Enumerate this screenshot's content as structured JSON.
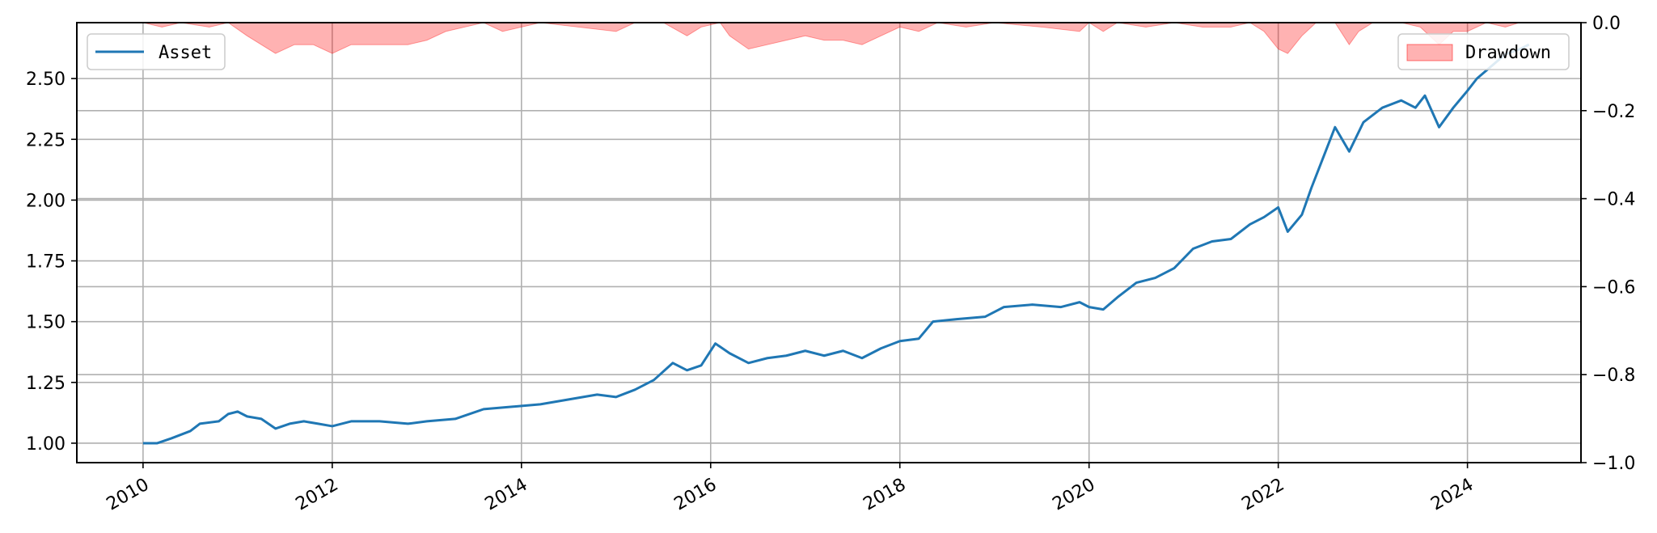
{
  "chart_data": {
    "type": "line",
    "title": "",
    "xlabel": "",
    "ylabel_left": "",
    "ylabel_right": "",
    "xlim": [
      2009.3,
      2025.2
    ],
    "ylim_left": [
      0.92,
      2.73
    ],
    "ylim_right": [
      -1.0,
      0.0
    ],
    "x_ticks": [
      2010,
      2012,
      2014,
      2016,
      2018,
      2020,
      2022,
      2024
    ],
    "x_tick_labels": [
      "2010",
      "2012",
      "2014",
      "2016",
      "2018",
      "2020",
      "2022",
      "2024"
    ],
    "y_left_ticks": [
      1.0,
      1.25,
      1.5,
      1.75,
      2.0,
      2.25,
      2.5
    ],
    "y_left_tick_labels": [
      "1.00",
      "1.25",
      "1.50",
      "1.75",
      "2.00",
      "2.25",
      "2.50"
    ],
    "y_right_ticks": [
      0.0,
      -0.2,
      -0.4,
      -0.6,
      -0.8,
      -1.0
    ],
    "y_right_tick_labels": [
      "0.0",
      "−0.2",
      "−0.4",
      "−0.6",
      "−0.8",
      "−1.0"
    ],
    "grid": true,
    "legend_left": "top-left",
    "legend_right": "top-right",
    "series": [
      {
        "name": "Asset",
        "axis": "left",
        "kind": "line",
        "color": "#1f77b4",
        "points": [
          [
            2010.0,
            1.0
          ],
          [
            2010.15,
            1.0
          ],
          [
            2010.3,
            1.02
          ],
          [
            2010.5,
            1.05
          ],
          [
            2010.6,
            1.08
          ],
          [
            2010.8,
            1.09
          ],
          [
            2010.9,
            1.12
          ],
          [
            2011.0,
            1.13
          ],
          [
            2011.1,
            1.11
          ],
          [
            2011.25,
            1.1
          ],
          [
            2011.4,
            1.06
          ],
          [
            2011.55,
            1.08
          ],
          [
            2011.7,
            1.09
          ],
          [
            2011.85,
            1.08
          ],
          [
            2012.0,
            1.07
          ],
          [
            2012.2,
            1.09
          ],
          [
            2012.5,
            1.09
          ],
          [
            2012.8,
            1.08
          ],
          [
            2013.0,
            1.09
          ],
          [
            2013.3,
            1.1
          ],
          [
            2013.6,
            1.14
          ],
          [
            2013.9,
            1.15
          ],
          [
            2014.2,
            1.16
          ],
          [
            2014.5,
            1.18
          ],
          [
            2014.8,
            1.2
          ],
          [
            2015.0,
            1.19
          ],
          [
            2015.2,
            1.22
          ],
          [
            2015.4,
            1.26
          ],
          [
            2015.6,
            1.33
          ],
          [
            2015.75,
            1.3
          ],
          [
            2015.9,
            1.32
          ],
          [
            2016.05,
            1.41
          ],
          [
            2016.2,
            1.37
          ],
          [
            2016.4,
            1.33
          ],
          [
            2016.6,
            1.35
          ],
          [
            2016.8,
            1.36
          ],
          [
            2017.0,
            1.38
          ],
          [
            2017.2,
            1.36
          ],
          [
            2017.4,
            1.38
          ],
          [
            2017.6,
            1.35
          ],
          [
            2017.8,
            1.39
          ],
          [
            2018.0,
            1.42
          ],
          [
            2018.2,
            1.43
          ],
          [
            2018.35,
            1.5
          ],
          [
            2018.6,
            1.51
          ],
          [
            2018.9,
            1.52
          ],
          [
            2019.1,
            1.56
          ],
          [
            2019.4,
            1.57
          ],
          [
            2019.7,
            1.56
          ],
          [
            2019.9,
            1.58
          ],
          [
            2020.0,
            1.56
          ],
          [
            2020.15,
            1.55
          ],
          [
            2020.3,
            1.6
          ],
          [
            2020.5,
            1.66
          ],
          [
            2020.7,
            1.68
          ],
          [
            2020.9,
            1.72
          ],
          [
            2021.1,
            1.8
          ],
          [
            2021.3,
            1.83
          ],
          [
            2021.5,
            1.84
          ],
          [
            2021.7,
            1.9
          ],
          [
            2021.85,
            1.93
          ],
          [
            2022.0,
            1.97
          ],
          [
            2022.1,
            1.87
          ],
          [
            2022.25,
            1.94
          ],
          [
            2022.35,
            2.05
          ],
          [
            2022.5,
            2.2
          ],
          [
            2022.6,
            2.3
          ],
          [
            2022.75,
            2.2
          ],
          [
            2022.9,
            2.32
          ],
          [
            2023.1,
            2.38
          ],
          [
            2023.3,
            2.41
          ],
          [
            2023.45,
            2.38
          ],
          [
            2023.55,
            2.43
          ],
          [
            2023.7,
            2.3
          ],
          [
            2023.85,
            2.38
          ],
          [
            2024.0,
            2.45
          ],
          [
            2024.1,
            2.5
          ],
          [
            2024.25,
            2.55
          ],
          [
            2024.4,
            2.6
          ],
          [
            2024.55,
            2.62
          ],
          [
            2024.65,
            2.64
          ]
        ]
      },
      {
        "name": "Drawdown",
        "axis": "right",
        "kind": "area",
        "color": "#ff0000",
        "points": [
          [
            2010.0,
            0.0
          ],
          [
            2010.2,
            -0.01
          ],
          [
            2010.4,
            0.0
          ],
          [
            2010.7,
            -0.01
          ],
          [
            2010.9,
            0.0
          ],
          [
            2011.1,
            -0.03
          ],
          [
            2011.25,
            -0.05
          ],
          [
            2011.4,
            -0.07
          ],
          [
            2011.6,
            -0.05
          ],
          [
            2011.8,
            -0.05
          ],
          [
            2012.0,
            -0.07
          ],
          [
            2012.2,
            -0.05
          ],
          [
            2012.5,
            -0.05
          ],
          [
            2012.8,
            -0.05
          ],
          [
            2013.0,
            -0.04
          ],
          [
            2013.2,
            -0.02
          ],
          [
            2013.4,
            -0.01
          ],
          [
            2013.6,
            0.0
          ],
          [
            2013.8,
            -0.02
          ],
          [
            2014.0,
            -0.01
          ],
          [
            2014.2,
            0.0
          ],
          [
            2014.6,
            -0.01
          ],
          [
            2015.0,
            -0.02
          ],
          [
            2015.2,
            0.0
          ],
          [
            2015.5,
            0.0
          ],
          [
            2015.75,
            -0.03
          ],
          [
            2015.9,
            -0.01
          ],
          [
            2016.1,
            0.0
          ],
          [
            2016.2,
            -0.03
          ],
          [
            2016.4,
            -0.06
          ],
          [
            2016.6,
            -0.05
          ],
          [
            2016.8,
            -0.04
          ],
          [
            2017.0,
            -0.03
          ],
          [
            2017.2,
            -0.04
          ],
          [
            2017.4,
            -0.04
          ],
          [
            2017.6,
            -0.05
          ],
          [
            2017.8,
            -0.03
          ],
          [
            2018.0,
            -0.01
          ],
          [
            2018.2,
            -0.02
          ],
          [
            2018.4,
            0.0
          ],
          [
            2018.7,
            -0.01
          ],
          [
            2019.0,
            0.0
          ],
          [
            2019.5,
            -0.01
          ],
          [
            2019.9,
            -0.02
          ],
          [
            2020.0,
            0.0
          ],
          [
            2020.15,
            -0.02
          ],
          [
            2020.3,
            0.0
          ],
          [
            2020.6,
            -0.01
          ],
          [
            2020.9,
            0.0
          ],
          [
            2021.2,
            -0.01
          ],
          [
            2021.5,
            -0.01
          ],
          [
            2021.7,
            0.0
          ],
          [
            2021.85,
            -0.02
          ],
          [
            2022.0,
            -0.06
          ],
          [
            2022.1,
            -0.07
          ],
          [
            2022.25,
            -0.03
          ],
          [
            2022.4,
            0.0
          ],
          [
            2022.6,
            0.0
          ],
          [
            2022.75,
            -0.05
          ],
          [
            2022.85,
            -0.02
          ],
          [
            2023.0,
            0.0
          ],
          [
            2023.3,
            0.0
          ],
          [
            2023.5,
            -0.01
          ],
          [
            2023.7,
            -0.05
          ],
          [
            2023.85,
            -0.02
          ],
          [
            2024.0,
            -0.02
          ],
          [
            2024.2,
            0.0
          ],
          [
            2024.4,
            -0.01
          ],
          [
            2024.55,
            0.0
          ],
          [
            2024.65,
            0.0
          ]
        ]
      }
    ]
  }
}
